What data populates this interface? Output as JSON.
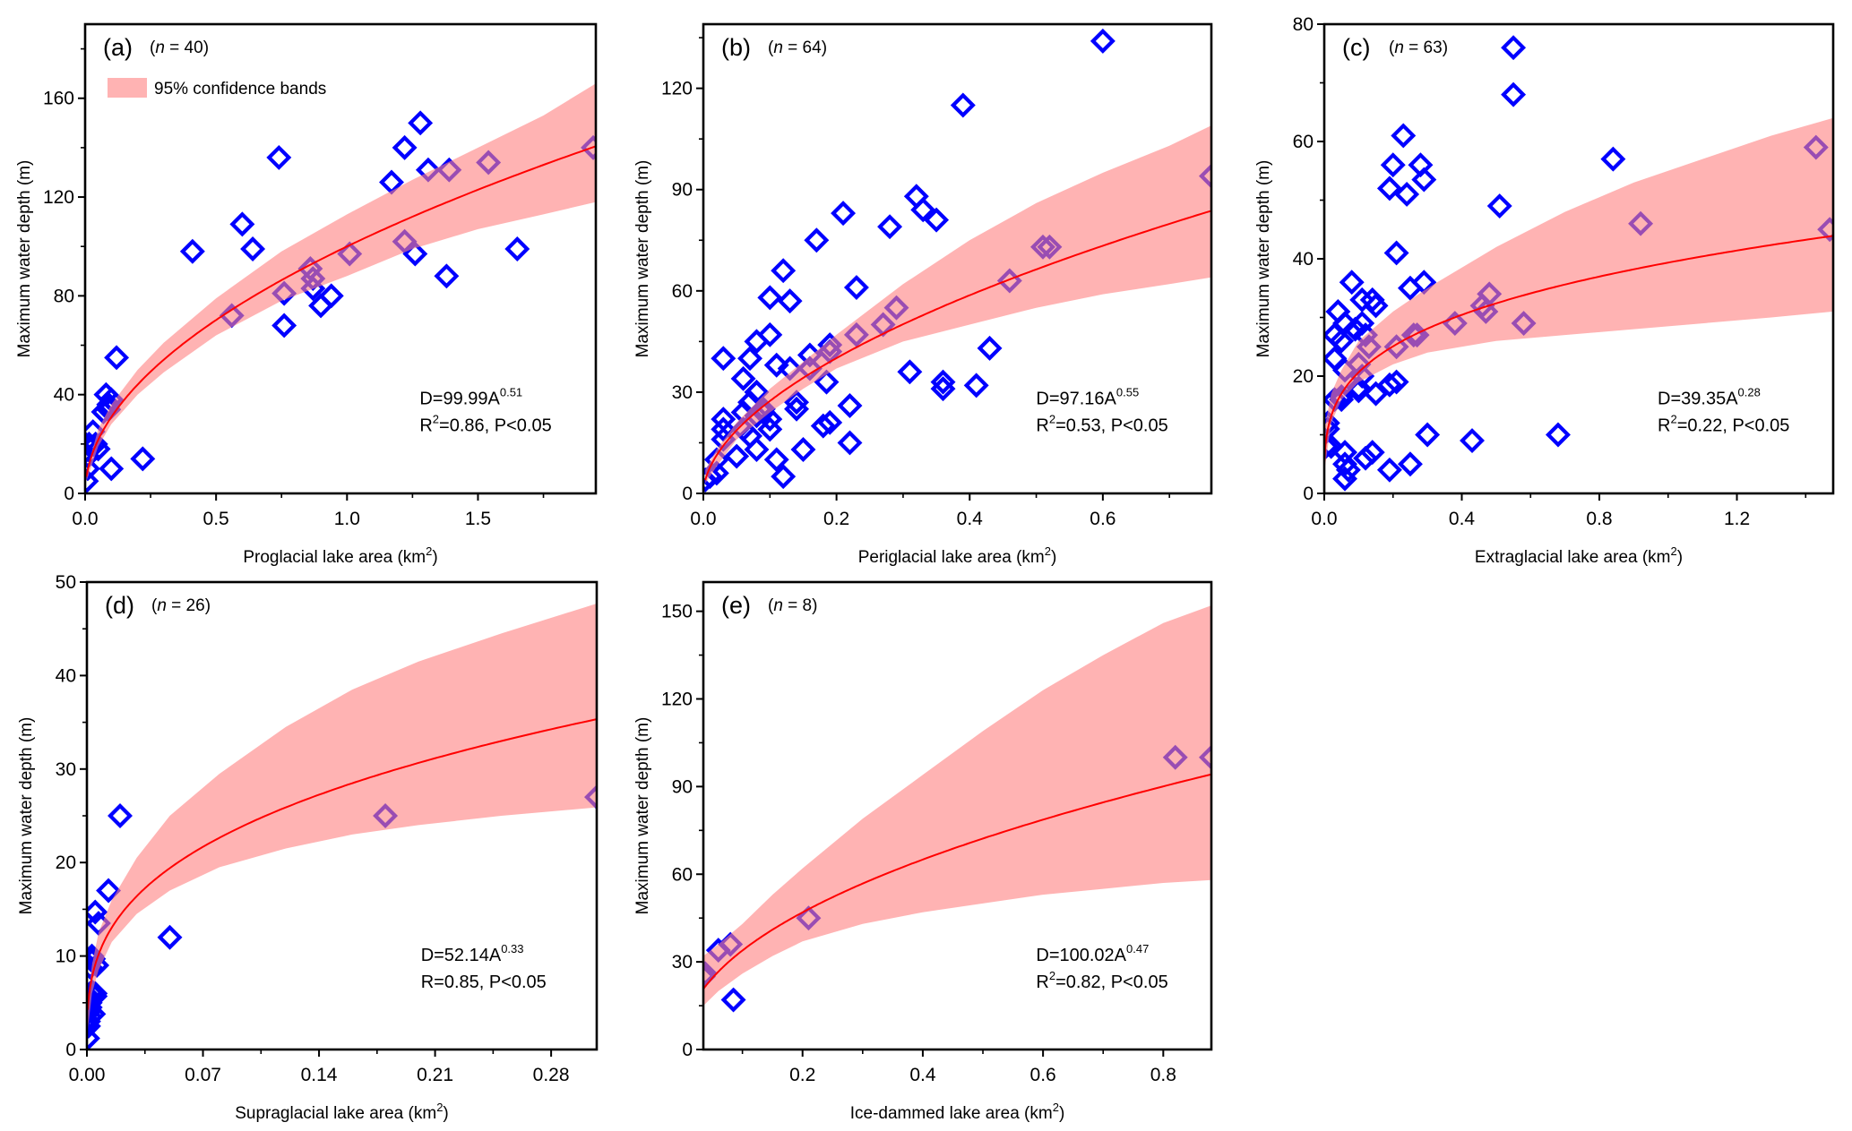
{
  "figure": {
    "legend_label": "95% confidence bands",
    "colors": {
      "marker": "#0000FF",
      "fit_line": "#FF0000",
      "band": "#FF8080",
      "axis": "#000000"
    }
  },
  "chart_data": [
    {
      "id": "a",
      "type": "scatter",
      "panel_label": "(a)",
      "n_label": "n",
      "n_value": "= 40)",
      "xlabel": "Proglacial lake area (km",
      "xlabel_sup": "2",
      "xlabel_end": ")",
      "ylabel": "Maximum water depth (m)",
      "xlim": [
        0,
        1.95
      ],
      "ylim": [
        0,
        190
      ],
      "xticks": [
        0,
        0.5,
        1.0,
        1.5
      ],
      "xtick_labels": [
        "0.0",
        "0.5",
        "1.0",
        "1.5"
      ],
      "xminor": [
        0.25,
        0.75,
        1.25,
        1.75
      ],
      "yticks": [
        0,
        40,
        80,
        120,
        160
      ],
      "ytick_labels": [
        "0",
        "40",
        "80",
        "120",
        "160"
      ],
      "yminor": [
        20,
        60,
        100,
        140,
        180
      ],
      "legend": true,
      "fit": {
        "a": 99.99,
        "b": 0.51
      },
      "equation": {
        "prefix": "D=99.99A",
        "exp": "0.51",
        "line2_pre": "R",
        "line2_sup": "2",
        "line2_post": "=0.86, P<0.05"
      },
      "band": {
        "x": [
          0.005,
          0.05,
          0.1,
          0.2,
          0.3,
          0.5,
          0.75,
          1.0,
          1.25,
          1.5,
          1.75,
          1.95
        ],
        "upper": [
          9,
          26,
          36,
          50,
          61,
          79,
          98,
          113,
          127,
          140,
          153,
          166
        ],
        "lower": [
          5,
          19,
          28,
          40,
          49,
          64,
          78,
          88,
          99,
          107,
          113,
          118
        ]
      },
      "points": [
        [
          0.005,
          5
        ],
        [
          0.01,
          10
        ],
        [
          0.01,
          15
        ],
        [
          0.015,
          20
        ],
        [
          0.02,
          19
        ],
        [
          0.03,
          25
        ],
        [
          0.04,
          20
        ],
        [
          0.05,
          18
        ],
        [
          0.07,
          33
        ],
        [
          0.08,
          40
        ],
        [
          0.09,
          36
        ],
        [
          0.1,
          38
        ],
        [
          0.1,
          10
        ],
        [
          0.12,
          55
        ],
        [
          0.22,
          14
        ],
        [
          0.41,
          98
        ],
        [
          0.56,
          72
        ],
        [
          0.6,
          109
        ],
        [
          0.64,
          99
        ],
        [
          0.74,
          136
        ],
        [
          0.76,
          81
        ],
        [
          0.76,
          68
        ],
        [
          0.86,
          91
        ],
        [
          0.87,
          87
        ],
        [
          0.87,
          83
        ],
        [
          0.9,
          76
        ],
        [
          0.94,
          80
        ],
        [
          1.01,
          97
        ],
        [
          1.17,
          126
        ],
        [
          1.22,
          140
        ],
        [
          1.22,
          102
        ],
        [
          1.26,
          97
        ],
        [
          1.28,
          150
        ],
        [
          1.31,
          131
        ],
        [
          1.38,
          88
        ],
        [
          1.39,
          131
        ],
        [
          1.54,
          134
        ],
        [
          1.65,
          99
        ],
        [
          1.94,
          140
        ],
        [
          0.09,
          34
        ]
      ]
    },
    {
      "id": "b",
      "type": "scatter",
      "panel_label": "(b)",
      "n_label": "n",
      "n_value": "= 64)",
      "xlabel": "Periglacial lake area (km",
      "xlabel_sup": "2",
      "xlabel_end": ")",
      "ylabel": "Maximum water depth (m)",
      "xlim": [
        0,
        0.763
      ],
      "ylim": [
        0,
        139
      ],
      "xticks": [
        0,
        0.2,
        0.4,
        0.6
      ],
      "xtick_labels": [
        "0.0",
        "0.2",
        "0.4",
        "0.6"
      ],
      "xminor": [
        0.1,
        0.3,
        0.5,
        0.7
      ],
      "yticks": [
        0,
        30,
        60,
        90,
        120
      ],
      "ytick_labels": [
        "0",
        "30",
        "60",
        "90",
        "120"
      ],
      "yminor": [
        15,
        45,
        75,
        105,
        135
      ],
      "legend": false,
      "fit": {
        "a": 97.16,
        "b": 0.55
      },
      "equation": {
        "prefix": "D=97.16A",
        "exp": "0.55",
        "line2_pre": "R",
        "line2_sup": "2",
        "line2_post": "=0.53, P<0.05"
      },
      "band": {
        "x": [
          0.003,
          0.02,
          0.05,
          0.1,
          0.15,
          0.2,
          0.3,
          0.4,
          0.5,
          0.6,
          0.7,
          0.763
        ],
        "upper": [
          7,
          13,
          21,
          31,
          39,
          47,
          62,
          75,
          86,
          95,
          103,
          109
        ],
        "lower": [
          3,
          8,
          16,
          24,
          31,
          37,
          45,
          50,
          55,
          59,
          62,
          64
        ]
      },
      "points": [
        [
          0.003,
          4
        ],
        [
          0.01,
          5
        ],
        [
          0.02,
          6
        ],
        [
          0.02,
          10
        ],
        [
          0.03,
          16
        ],
        [
          0.03,
          19
        ],
        [
          0.03,
          22
        ],
        [
          0.03,
          40
        ],
        [
          0.05,
          11
        ],
        [
          0.06,
          19
        ],
        [
          0.06,
          24
        ],
        [
          0.06,
          34
        ],
        [
          0.07,
          17
        ],
        [
          0.07,
          27
        ],
        [
          0.07,
          40
        ],
        [
          0.08,
          13
        ],
        [
          0.08,
          23
        ],
        [
          0.08,
          30
        ],
        [
          0.08,
          45
        ],
        [
          0.09,
          25
        ],
        [
          0.1,
          19
        ],
        [
          0.1,
          22
        ],
        [
          0.1,
          47
        ],
        [
          0.1,
          58
        ],
        [
          0.11,
          10
        ],
        [
          0.11,
          38
        ],
        [
          0.12,
          5
        ],
        [
          0.12,
          66
        ],
        [
          0.13,
          37
        ],
        [
          0.13,
          57
        ],
        [
          0.14,
          25
        ],
        [
          0.14,
          27
        ],
        [
          0.15,
          13
        ],
        [
          0.16,
          37
        ],
        [
          0.16,
          41
        ],
        [
          0.17,
          75
        ],
        [
          0.18,
          20
        ],
        [
          0.185,
          33
        ],
        [
          0.19,
          21
        ],
        [
          0.19,
          42
        ],
        [
          0.19,
          44
        ],
        [
          0.21,
          83
        ],
        [
          0.22,
          15
        ],
        [
          0.22,
          26
        ],
        [
          0.23,
          47
        ],
        [
          0.23,
          61
        ],
        [
          0.27,
          50
        ],
        [
          0.28,
          79
        ],
        [
          0.29,
          55
        ],
        [
          0.31,
          36
        ],
        [
          0.32,
          88
        ],
        [
          0.33,
          84
        ],
        [
          0.35,
          81
        ],
        [
          0.36,
          31
        ],
        [
          0.36,
          33
        ],
        [
          0.39,
          115
        ],
        [
          0.41,
          32
        ],
        [
          0.43,
          43
        ],
        [
          0.46,
          63
        ],
        [
          0.51,
          73
        ],
        [
          0.52,
          73
        ],
        [
          0.6,
          134
        ],
        [
          0.763,
          94
        ],
        [
          0.09,
          24
        ]
      ]
    },
    {
      "id": "c",
      "type": "scatter",
      "panel_label": "(c)",
      "n_label": "n",
      "n_value": "= 63)",
      "xlabel": "Extraglacial lake area (km",
      "xlabel_sup": "2",
      "xlabel_end": ")",
      "ylabel": "Maximum water depth (m)",
      "xlim": [
        0,
        1.48
      ],
      "ylim": [
        0,
        80
      ],
      "xticks": [
        0,
        0.4,
        0.8,
        1.2
      ],
      "xtick_labels": [
        "0.0",
        "0.4",
        "0.8",
        "1.2"
      ],
      "xminor": [
        0.2,
        0.6,
        1.0,
        1.4
      ],
      "yticks": [
        0,
        20,
        40,
        60,
        80
      ],
      "ytick_labels": [
        "0",
        "20",
        "40",
        "60",
        "80"
      ],
      "yminor": [
        10,
        30,
        50,
        70
      ],
      "legend": false,
      "fit": {
        "a": 39.35,
        "b": 0.28
      },
      "equation": {
        "prefix": "D=39.35A",
        "exp": "0.28",
        "line2_pre": "R",
        "line2_sup": "2",
        "line2_post": "=0.22, P<0.05"
      },
      "band": {
        "x": [
          0.001,
          0.02,
          0.05,
          0.1,
          0.2,
          0.3,
          0.5,
          0.7,
          0.9,
          1.1,
          1.3,
          1.48
        ],
        "upper": [
          11,
          17,
          21,
          26,
          31,
          35,
          42,
          48,
          53,
          57,
          61,
          64
        ],
        "lower": [
          4,
          12,
          16,
          19,
          22,
          24,
          26,
          27,
          28,
          29,
          30,
          31
        ]
      },
      "points": [
        [
          0.005,
          8
        ],
        [
          0.01,
          11
        ],
        [
          0.01,
          12
        ],
        [
          0.03,
          16
        ],
        [
          0.03,
          23
        ],
        [
          0.03,
          27
        ],
        [
          0.04,
          31
        ],
        [
          0.05,
          16
        ],
        [
          0.05,
          26
        ],
        [
          0.06,
          21
        ],
        [
          0.06,
          29
        ],
        [
          0.06,
          7
        ],
        [
          0.06,
          5
        ],
        [
          0.06,
          2.5
        ],
        [
          0.07,
          4
        ],
        [
          0.08,
          36
        ],
        [
          0.09,
          28
        ],
        [
          0.1,
          18
        ],
        [
          0.1,
          22
        ],
        [
          0.11,
          20
        ],
        [
          0.11,
          29
        ],
        [
          0.11,
          33
        ],
        [
          0.12,
          27
        ],
        [
          0.12,
          6
        ],
        [
          0.13,
          25
        ],
        [
          0.14,
          7
        ],
        [
          0.14,
          33
        ],
        [
          0.15,
          17
        ],
        [
          0.15,
          32
        ],
        [
          0.19,
          52
        ],
        [
          0.19,
          18.5
        ],
        [
          0.19,
          4
        ],
        [
          0.2,
          56
        ],
        [
          0.21,
          41
        ],
        [
          0.21,
          19
        ],
        [
          0.21,
          25
        ],
        [
          0.23,
          61
        ],
        [
          0.24,
          51
        ],
        [
          0.25,
          5
        ],
        [
          0.25,
          35
        ],
        [
          0.26,
          27
        ],
        [
          0.27,
          27
        ],
        [
          0.28,
          56
        ],
        [
          0.29,
          53.5
        ],
        [
          0.29,
          36
        ],
        [
          0.3,
          10
        ],
        [
          0.38,
          29
        ],
        [
          0.43,
          9
        ],
        [
          0.46,
          32
        ],
        [
          0.47,
          31
        ],
        [
          0.48,
          34
        ],
        [
          0.51,
          49
        ],
        [
          0.55,
          76
        ],
        [
          0.55,
          68
        ],
        [
          0.58,
          29
        ],
        [
          0.68,
          10
        ],
        [
          0.84,
          57
        ],
        [
          0.92,
          46
        ],
        [
          1.43,
          59
        ],
        [
          1.47,
          45
        ],
        [
          0.02,
          8
        ],
        [
          0.1,
          17.5
        ],
        [
          0.05,
          16.5
        ]
      ]
    },
    {
      "id": "d",
      "type": "scatter",
      "panel_label": "(d)",
      "n_label": "n",
      "n_value": "= 26)",
      "xlabel": "Supraglacial lake area (km",
      "xlabel_sup": "2",
      "xlabel_end": ")",
      "ylabel": "Maximum water depth (m)",
      "xlim": [
        0,
        0.3075
      ],
      "ylim": [
        0,
        50
      ],
      "xticks": [
        0,
        0.07,
        0.14,
        0.21,
        0.28
      ],
      "xtick_labels": [
        "0.00",
        "0.07",
        "0.14",
        "0.21",
        "0.28"
      ],
      "xminor": [
        0.035,
        0.105,
        0.175,
        0.245
      ],
      "yticks": [
        0,
        10,
        20,
        30,
        40,
        50
      ],
      "ytick_labels": [
        "0",
        "10",
        "20",
        "30",
        "40",
        "50"
      ],
      "yminor": [
        5,
        15,
        25,
        35,
        45
      ],
      "legend": false,
      "fit": {
        "a": 52.14,
        "b": 0.33
      },
      "equation": {
        "prefix": "D=52.14A",
        "exp": "0.33",
        "line2_pre": "R",
        "line2_sup": "",
        "line2_post": "=0.85, P<0.05"
      },
      "band": {
        "x": [
          0.0005,
          0.003,
          0.007,
          0.015,
          0.03,
          0.05,
          0.08,
          0.12,
          0.16,
          0.2,
          0.25,
          0.3075
        ],
        "upper": [
          5,
          9,
          12.5,
          16,
          20.5,
          25,
          29.5,
          34.5,
          38.5,
          41.5,
          44.5,
          47.7
        ],
        "lower": [
          2,
          6,
          8.5,
          11.5,
          14.5,
          17,
          19.5,
          21.5,
          23,
          24,
          25,
          25.9
        ]
      },
      "points": [
        [
          0.0005,
          1.2
        ],
        [
          0.001,
          2.5
        ],
        [
          0.001,
          3
        ],
        [
          0.001,
          4
        ],
        [
          0.002,
          3.5
        ],
        [
          0.002,
          4.5
        ],
        [
          0.002,
          5
        ],
        [
          0.002,
          5.5
        ],
        [
          0.003,
          6
        ],
        [
          0.003,
          6.2
        ],
        [
          0.004,
          3.8
        ],
        [
          0.004,
          5.8
        ],
        [
          0.005,
          5.7
        ],
        [
          0.005,
          6
        ],
        [
          0.002,
          8.8
        ],
        [
          0.003,
          9.5
        ],
        [
          0.003,
          10
        ],
        [
          0.004,
          9.7
        ],
        [
          0.006,
          9
        ],
        [
          0.005,
          14.7
        ],
        [
          0.007,
          13.5
        ],
        [
          0.013,
          17
        ],
        [
          0.02,
          25
        ],
        [
          0.05,
          12
        ],
        [
          0.18,
          25
        ],
        [
          0.3075,
          27
        ]
      ]
    },
    {
      "id": "e",
      "type": "scatter",
      "panel_label": "(e)",
      "n_label": "n",
      "n_value": "= 8)",
      "xlabel": "Ice-dammed lake area (km",
      "xlabel_sup": "2",
      "xlabel_end": ")",
      "ylabel": "Maximum water depth (m)",
      "xlim": [
        0.035,
        0.88
      ],
      "ylim": [
        0,
        160
      ],
      "xticks": [
        0.2,
        0.4,
        0.6,
        0.8
      ],
      "xtick_labels": [
        "0.2",
        "0.4",
        "0.6",
        "0.8"
      ],
      "xminor": [
        0.1,
        0.3,
        0.5,
        0.7
      ],
      "yticks": [
        0,
        30,
        60,
        90,
        120,
        150
      ],
      "ytick_labels": [
        "0",
        "30",
        "60",
        "90",
        "120",
        "150"
      ],
      "yminor": [
        15,
        45,
        75,
        105,
        135
      ],
      "legend": false,
      "fit": {
        "a": 100.02,
        "b": 0.47
      },
      "equation": {
        "prefix": "D=100.02A",
        "exp": "0.47",
        "line2_pre": "R",
        "line2_sup": "2",
        "line2_post": "=0.82, P<0.05"
      },
      "band": {
        "x": [
          0.035,
          0.06,
          0.1,
          0.15,
          0.2,
          0.3,
          0.4,
          0.5,
          0.6,
          0.7,
          0.8,
          0.88
        ],
        "upper": [
          32,
          36,
          43,
          53,
          62,
          79,
          94,
          109,
          123,
          135,
          146,
          152
        ],
        "lower": [
          15,
          20,
          26,
          32,
          37,
          43,
          47,
          50,
          53,
          55,
          57,
          58
        ]
      },
      "points": [
        [
          0.035,
          25
        ],
        [
          0.038,
          26
        ],
        [
          0.06,
          34
        ],
        [
          0.08,
          36
        ],
        [
          0.085,
          17
        ],
        [
          0.21,
          45
        ],
        [
          0.82,
          100
        ],
        [
          0.88,
          100
        ]
      ]
    }
  ]
}
